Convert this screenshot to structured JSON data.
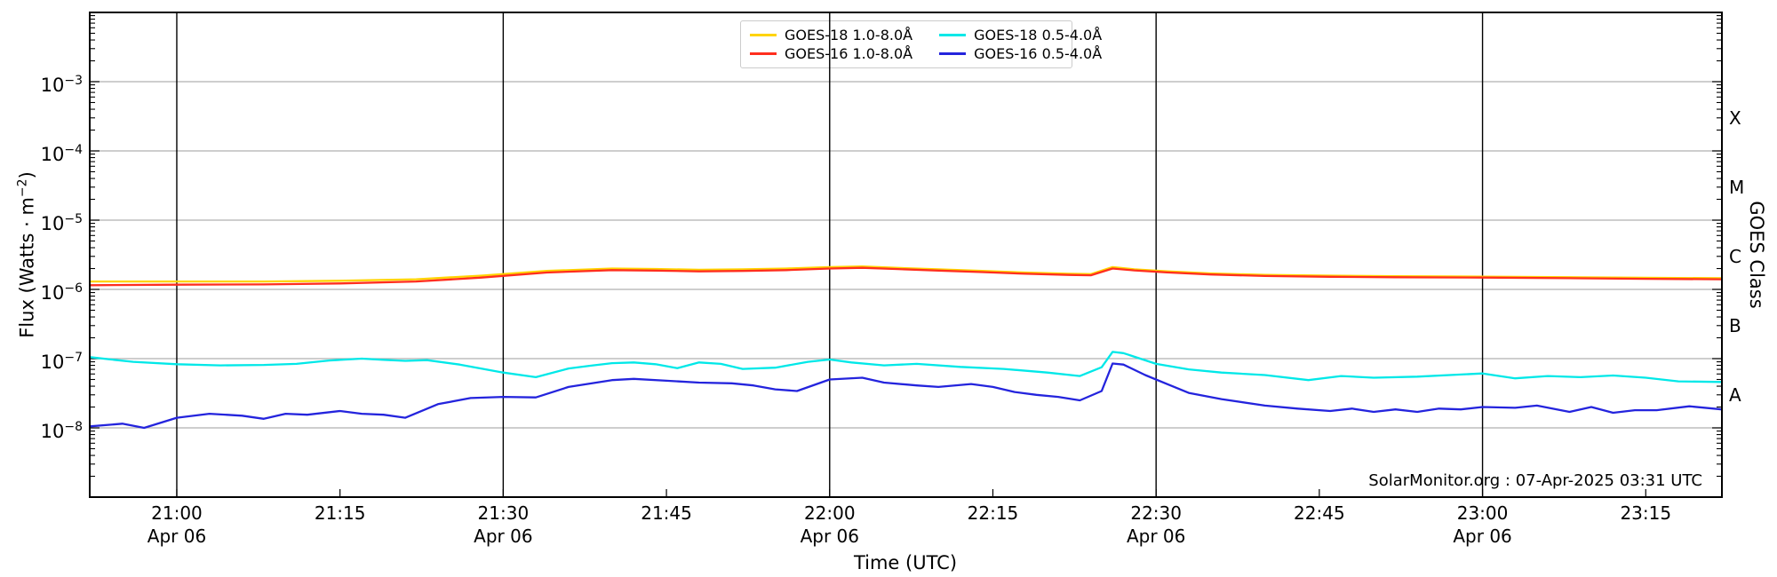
{
  "figure": {
    "credit": "SolarMonitor.org : 07-Apr-2025 03:31 UTC",
    "background": "#ffffff"
  },
  "chart_data": {
    "type": "line",
    "title": "",
    "xlabel": "Time (UTC)",
    "ylabel": {
      "pre": "Flux (Watts · m",
      "sup": "−2",
      "post": ")"
    },
    "y2label": "GOES Class",
    "x_date": "Apr 06",
    "x_range": [
      "20:52",
      "23:22"
    ],
    "ylim": [
      1e-09,
      0.01
    ],
    "y_scale": "log",
    "grid": "on",
    "legend_position": "top-center",
    "grid_color": "#b0b0b0",
    "axis_color": "#000000",
    "y_tick_exponents": [
      -3,
      -4,
      -5,
      -6,
      -7,
      -8
    ],
    "x_ticks": [
      {
        "label": "21:00",
        "date": "Apr 06",
        "gridline": true
      },
      {
        "label": "21:15",
        "gridline": false
      },
      {
        "label": "21:30",
        "date": "Apr 06",
        "gridline": true
      },
      {
        "label": "21:45",
        "gridline": false
      },
      {
        "label": "22:00",
        "date": "Apr 06",
        "gridline": true
      },
      {
        "label": "22:15",
        "gridline": false
      },
      {
        "label": "22:30",
        "date": "Apr 06",
        "gridline": true
      },
      {
        "label": "22:45",
        "gridline": false
      },
      {
        "label": "23:00",
        "date": "Apr 06",
        "gridline": true
      },
      {
        "label": "23:15",
        "gridline": false
      }
    ],
    "goes_class_labels": [
      {
        "label": "X",
        "log_center": -3.5
      },
      {
        "label": "M",
        "log_center": -4.5
      },
      {
        "label": "C",
        "log_center": -5.5
      },
      {
        "label": "B",
        "log_center": -6.5
      },
      {
        "label": "A",
        "log_center": -7.5
      }
    ],
    "series": [
      {
        "name": "GOES-18 1.0-8.0Å",
        "color": "#ffd400",
        "points": [
          [
            "20:52",
            1.3e-06
          ],
          [
            "21:00",
            1.3e-06
          ],
          [
            "21:08",
            1.3e-06
          ],
          [
            "21:15",
            1.33e-06
          ],
          [
            "21:22",
            1.4e-06
          ],
          [
            "21:28",
            1.58e-06
          ],
          [
            "21:34",
            1.85e-06
          ],
          [
            "21:40",
            2e-06
          ],
          [
            "21:44",
            1.97e-06
          ],
          [
            "21:48",
            1.92e-06
          ],
          [
            "21:52",
            1.95e-06
          ],
          [
            "21:56",
            2e-06
          ],
          [
            "22:00",
            2.1e-06
          ],
          [
            "22:03",
            2.15e-06
          ],
          [
            "22:06",
            2.05e-06
          ],
          [
            "22:10",
            1.95e-06
          ],
          [
            "22:14",
            1.85e-06
          ],
          [
            "22:18",
            1.75e-06
          ],
          [
            "22:22",
            1.68e-06
          ],
          [
            "22:24",
            1.66e-06
          ],
          [
            "22:26",
            2.1e-06
          ],
          [
            "22:28",
            1.95e-06
          ],
          [
            "22:31",
            1.82e-06
          ],
          [
            "22:35",
            1.7e-06
          ],
          [
            "22:40",
            1.62e-06
          ],
          [
            "22:46",
            1.58e-06
          ],
          [
            "22:52",
            1.55e-06
          ],
          [
            "23:00",
            1.53e-06
          ],
          [
            "23:08",
            1.5e-06
          ],
          [
            "23:15",
            1.47e-06
          ],
          [
            "23:22",
            1.45e-06
          ]
        ]
      },
      {
        "name": "GOES-16 1.0-8.0Å",
        "color": "#ff2e1e",
        "points": [
          [
            "20:52",
            1.15e-06
          ],
          [
            "21:00",
            1.17e-06
          ],
          [
            "21:08",
            1.18e-06
          ],
          [
            "21:15",
            1.22e-06
          ],
          [
            "21:22",
            1.3e-06
          ],
          [
            "21:28",
            1.48e-06
          ],
          [
            "21:34",
            1.75e-06
          ],
          [
            "21:40",
            1.9e-06
          ],
          [
            "21:44",
            1.87e-06
          ],
          [
            "21:48",
            1.82e-06
          ],
          [
            "21:52",
            1.85e-06
          ],
          [
            "21:56",
            1.9e-06
          ],
          [
            "22:00",
            2e-06
          ],
          [
            "22:03",
            2.05e-06
          ],
          [
            "22:06",
            1.97e-06
          ],
          [
            "22:10",
            1.87e-06
          ],
          [
            "22:14",
            1.78e-06
          ],
          [
            "22:18",
            1.68e-06
          ],
          [
            "22:22",
            1.62e-06
          ],
          [
            "22:24",
            1.6e-06
          ],
          [
            "22:26",
            2e-06
          ],
          [
            "22:28",
            1.88e-06
          ],
          [
            "22:31",
            1.76e-06
          ],
          [
            "22:35",
            1.64e-06
          ],
          [
            "22:40",
            1.56e-06
          ],
          [
            "22:46",
            1.52e-06
          ],
          [
            "22:52",
            1.5e-06
          ],
          [
            "23:00",
            1.48e-06
          ],
          [
            "23:08",
            1.45e-06
          ],
          [
            "23:15",
            1.42e-06
          ],
          [
            "23:22",
            1.4e-06
          ]
        ]
      },
      {
        "name": "GOES-18 0.5-4.0Å",
        "color": "#00e8e8",
        "points": [
          [
            "20:52",
            1.05e-07
          ],
          [
            "20:54",
            9.7e-08
          ],
          [
            "20:56",
            9e-08
          ],
          [
            "21:00",
            8.3e-08
          ],
          [
            "21:04",
            8e-08
          ],
          [
            "21:08",
            8.1e-08
          ],
          [
            "21:11",
            8.4e-08
          ],
          [
            "21:14",
            9.4e-08
          ],
          [
            "21:17",
            1e-07
          ],
          [
            "21:19",
            9.6e-08
          ],
          [
            "21:21",
            9.3e-08
          ],
          [
            "21:23",
            9.5e-08
          ],
          [
            "21:26",
            8.2e-08
          ],
          [
            "21:30",
            6.3e-08
          ],
          [
            "21:33",
            5.4e-08
          ],
          [
            "21:36",
            7.2e-08
          ],
          [
            "21:38",
            7.9e-08
          ],
          [
            "21:40",
            8.6e-08
          ],
          [
            "21:42",
            8.8e-08
          ],
          [
            "21:44",
            8.3e-08
          ],
          [
            "21:46",
            7.3e-08
          ],
          [
            "21:48",
            8.8e-08
          ],
          [
            "21:50",
            8.4e-08
          ],
          [
            "21:52",
            7.1e-08
          ],
          [
            "21:55",
            7.4e-08
          ],
          [
            "21:58",
            9e-08
          ],
          [
            "22:00",
            9.7e-08
          ],
          [
            "22:02",
            8.8e-08
          ],
          [
            "22:05",
            8e-08
          ],
          [
            "22:08",
            8.4e-08
          ],
          [
            "22:12",
            7.6e-08
          ],
          [
            "22:16",
            7.1e-08
          ],
          [
            "22:20",
            6.3e-08
          ],
          [
            "22:23",
            5.6e-08
          ],
          [
            "22:25",
            7.5e-08
          ],
          [
            "22:26",
            1.25e-07
          ],
          [
            "22:27",
            1.2e-07
          ],
          [
            "22:30",
            8.4e-08
          ],
          [
            "22:33",
            7e-08
          ],
          [
            "22:36",
            6.3e-08
          ],
          [
            "22:40",
            5.8e-08
          ],
          [
            "22:44",
            4.9e-08
          ],
          [
            "22:47",
            5.6e-08
          ],
          [
            "22:50",
            5.3e-08
          ],
          [
            "22:54",
            5.5e-08
          ],
          [
            "22:58",
            5.9e-08
          ],
          [
            "23:00",
            6.1e-08
          ],
          [
            "23:03",
            5.2e-08
          ],
          [
            "23:06",
            5.6e-08
          ],
          [
            "23:09",
            5.4e-08
          ],
          [
            "23:12",
            5.7e-08
          ],
          [
            "23:15",
            5.3e-08
          ],
          [
            "23:18",
            4.7e-08
          ],
          [
            "23:22",
            4.6e-08
          ]
        ]
      },
      {
        "name": "GOES-16 0.5-4.0Å",
        "color": "#2424dd",
        "points": [
          [
            "20:52",
            1.05e-08
          ],
          [
            "20:55",
            1.15e-08
          ],
          [
            "20:57",
            1e-08
          ],
          [
            "21:00",
            1.4e-08
          ],
          [
            "21:03",
            1.6e-08
          ],
          [
            "21:06",
            1.5e-08
          ],
          [
            "21:08",
            1.35e-08
          ],
          [
            "21:10",
            1.6e-08
          ],
          [
            "21:12",
            1.55e-08
          ],
          [
            "21:15",
            1.75e-08
          ],
          [
            "21:17",
            1.6e-08
          ],
          [
            "21:19",
            1.55e-08
          ],
          [
            "21:21",
            1.4e-08
          ],
          [
            "21:24",
            2.2e-08
          ],
          [
            "21:27",
            2.7e-08
          ],
          [
            "21:30",
            2.8e-08
          ],
          [
            "21:33",
            2.75e-08
          ],
          [
            "21:36",
            3.9e-08
          ],
          [
            "21:40",
            4.9e-08
          ],
          [
            "21:42",
            5.1e-08
          ],
          [
            "21:45",
            4.8e-08
          ],
          [
            "21:48",
            4.5e-08
          ],
          [
            "21:51",
            4.4e-08
          ],
          [
            "21:53",
            4.1e-08
          ],
          [
            "21:55",
            3.6e-08
          ],
          [
            "21:57",
            3.4e-08
          ],
          [
            "22:00",
            5e-08
          ],
          [
            "22:03",
            5.3e-08
          ],
          [
            "22:05",
            4.5e-08
          ],
          [
            "22:08",
            4.1e-08
          ],
          [
            "22:10",
            3.9e-08
          ],
          [
            "22:13",
            4.3e-08
          ],
          [
            "22:15",
            3.9e-08
          ],
          [
            "22:17",
            3.3e-08
          ],
          [
            "22:19",
            3e-08
          ],
          [
            "22:21",
            2.8e-08
          ],
          [
            "22:23",
            2.5e-08
          ],
          [
            "22:25",
            3.4e-08
          ],
          [
            "22:26",
            8.5e-08
          ],
          [
            "22:27",
            8.2e-08
          ],
          [
            "22:29",
            5.8e-08
          ],
          [
            "22:31",
            4.3e-08
          ],
          [
            "22:33",
            3.2e-08
          ],
          [
            "22:36",
            2.6e-08
          ],
          [
            "22:40",
            2.1e-08
          ],
          [
            "22:43",
            1.9e-08
          ],
          [
            "22:46",
            1.75e-08
          ],
          [
            "22:48",
            1.9e-08
          ],
          [
            "22:50",
            1.7e-08
          ],
          [
            "22:52",
            1.85e-08
          ],
          [
            "22:54",
            1.7e-08
          ],
          [
            "22:56",
            1.9e-08
          ],
          [
            "22:58",
            1.85e-08
          ],
          [
            "23:00",
            2e-08
          ],
          [
            "23:03",
            1.95e-08
          ],
          [
            "23:05",
            2.1e-08
          ],
          [
            "23:08",
            1.7e-08
          ],
          [
            "23:10",
            2e-08
          ],
          [
            "23:12",
            1.65e-08
          ],
          [
            "23:14",
            1.8e-08
          ],
          [
            "23:16",
            1.8e-08
          ],
          [
            "23:19",
            2.05e-08
          ],
          [
            "23:22",
            1.85e-08
          ]
        ]
      }
    ]
  }
}
